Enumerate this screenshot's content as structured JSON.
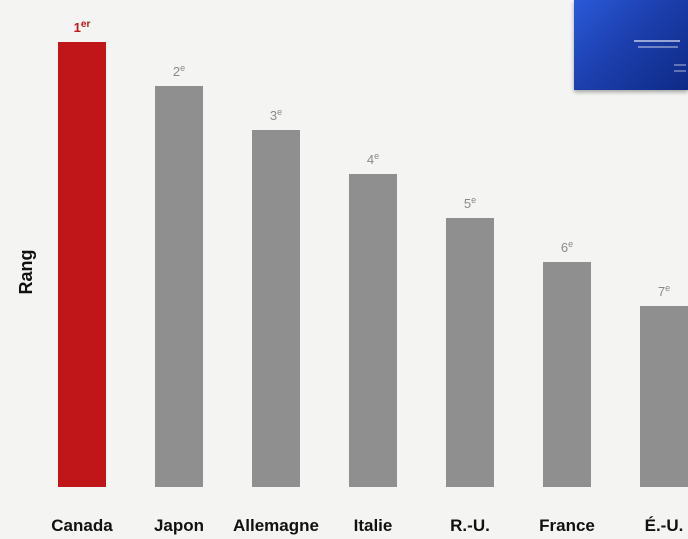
{
  "chart_data": {
    "type": "bar",
    "title": "",
    "xlabel": "",
    "ylabel": "Rang",
    "categories": [
      "Canada",
      "Japon",
      "Allemagne",
      "Italie",
      "R.-U.",
      "France",
      "É.-U."
    ],
    "values": [
      1,
      2,
      3,
      4,
      5,
      6,
      7
    ],
    "rank_labels": [
      {
        "num": "1",
        "suffix": "er"
      },
      {
        "num": "2",
        "suffix": "e"
      },
      {
        "num": "3",
        "suffix": "e"
      },
      {
        "num": "4",
        "suffix": "e"
      },
      {
        "num": "5",
        "suffix": "e"
      },
      {
        "num": "6",
        "suffix": "e"
      },
      {
        "num": "7",
        "suffix": "e"
      }
    ],
    "ylim": [
      1,
      7
    ],
    "inverted_axis": true,
    "grid": false,
    "legend": "none"
  },
  "colors": {
    "highlight": "#c0161a",
    "bar": "#8f8f8f",
    "highlight_label": "#c0161a",
    "rank_label": "#8a8a8a"
  },
  "decor": {
    "icon": "report-cover-thumbnail-icon"
  }
}
